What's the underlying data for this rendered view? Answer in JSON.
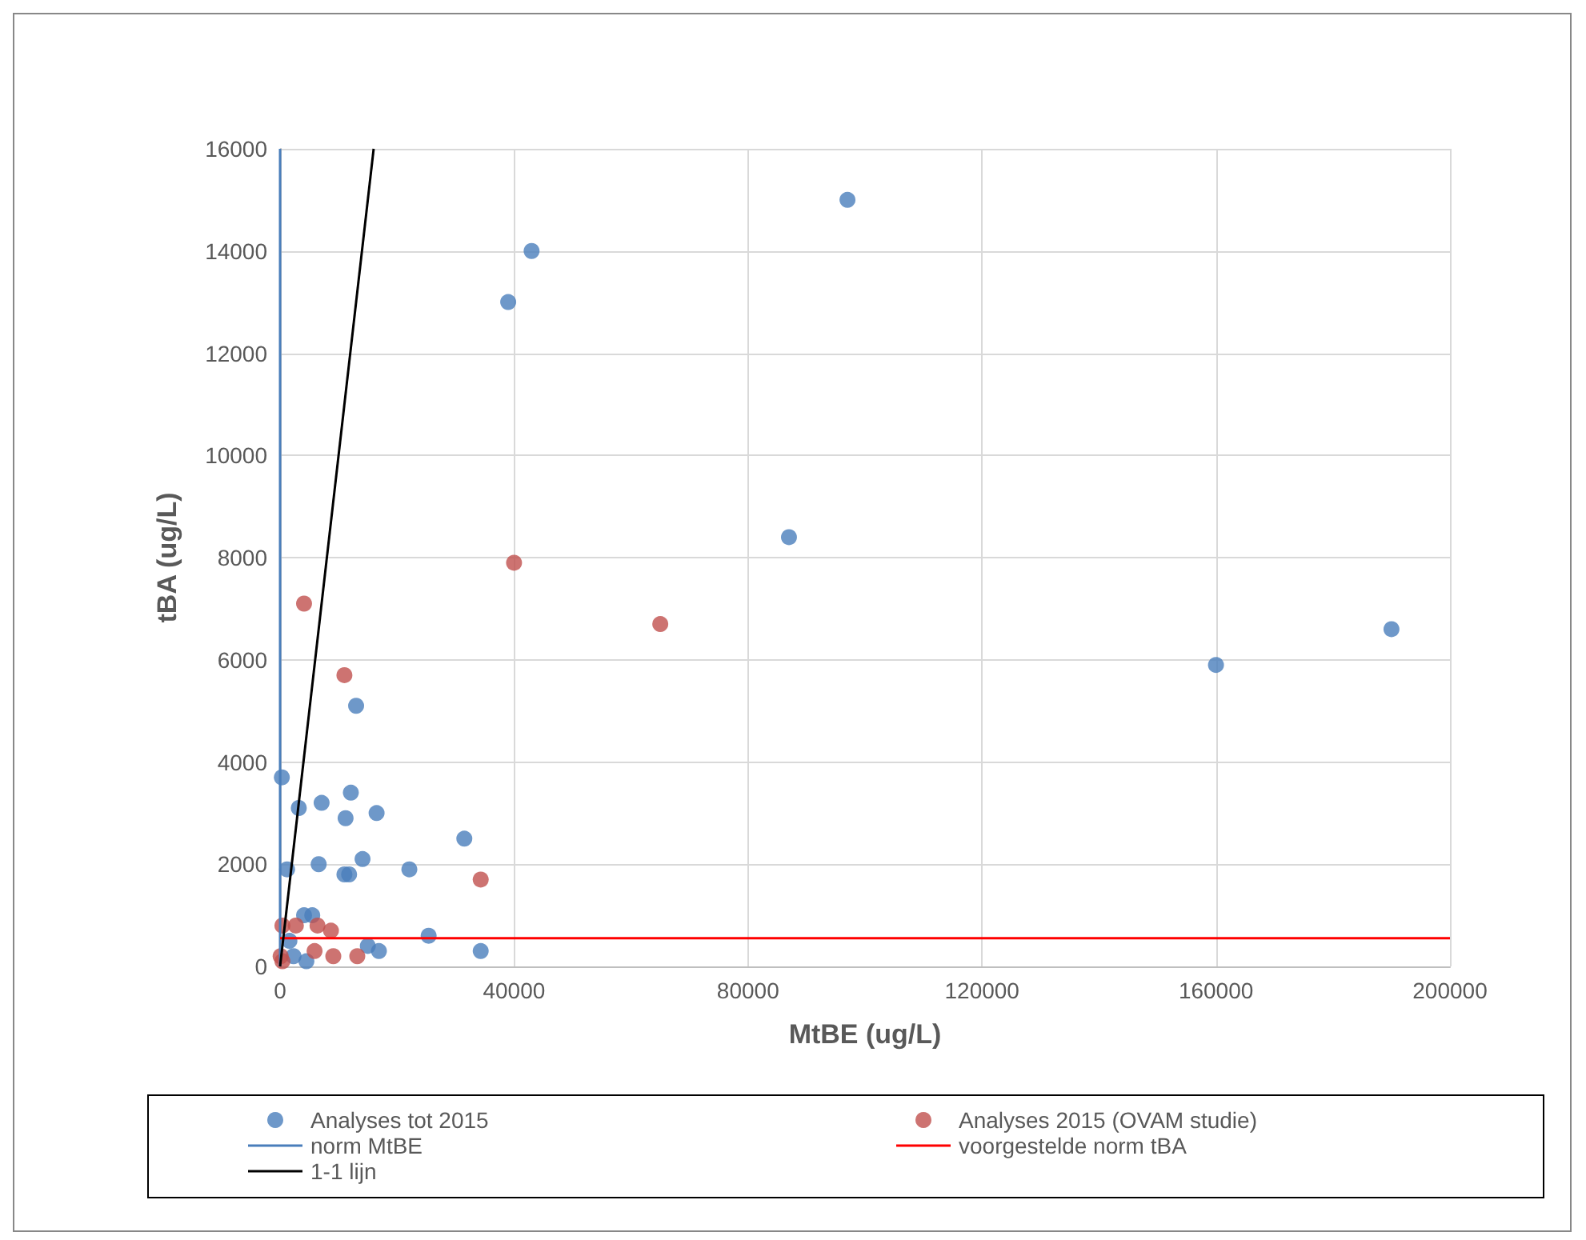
{
  "chart_data": {
    "type": "scatter",
    "xlabel": "MtBE (ug/L)",
    "ylabel": "tBA (ug/L)",
    "xlim": [
      0,
      200000
    ],
    "xticks": [
      0,
      40000,
      80000,
      120000,
      160000,
      200000
    ],
    "ylim": [
      0,
      16000
    ],
    "yticks": [
      0,
      2000,
      4000,
      6000,
      8000,
      10000,
      12000,
      14000,
      16000
    ],
    "grid": true,
    "legend": "bottom",
    "marker": "circle",
    "series": [
      {
        "name": "Analyses tot 2015",
        "color": "#4a7ebb",
        "x": [
          97000,
          43000,
          39000,
          87000,
          160000,
          190000,
          13000,
          300,
          3200,
          7100,
          12100,
          11200,
          16500,
          31500,
          1200,
          6600,
          11000,
          11800,
          14100,
          22100,
          25400,
          34300,
          16900,
          15000,
          4100,
          5500,
          4500,
          2300,
          1600
        ],
        "values": [
          15000,
          14000,
          13000,
          8400,
          5900,
          6600,
          5100,
          3700,
          3100,
          3200,
          3400,
          2900,
          3000,
          2500,
          1900,
          2000,
          1800,
          1800,
          2100,
          1900,
          600,
          300,
          300,
          400,
          1000,
          1000,
          100,
          200,
          500
        ]
      },
      {
        "name": "Analyses 2015 (OVAM studie)",
        "color": "#c0504d",
        "x": [
          4100,
          40000,
          65000,
          11000,
          34300,
          400,
          2700,
          6400,
          8700,
          13200,
          9100,
          5900,
          400,
          100
        ],
        "values": [
          7100,
          7900,
          6700,
          5700,
          1700,
          800,
          800,
          800,
          700,
          200,
          200,
          300,
          100,
          200
        ]
      },
      {
        "name": "norm MtBE",
        "type": "line",
        "marker": "none",
        "color": "#4a7ebb",
        "x": [
          0,
          0
        ],
        "values": [
          0,
          16000
        ]
      },
      {
        "name": "voorgestelde norm tBA",
        "type": "line",
        "marker": "none",
        "color": "#ff0000",
        "x": [
          0,
          200000
        ],
        "values": [
          550,
          550
        ]
      },
      {
        "name": "1-1 lijn",
        "type": "line",
        "marker": "none",
        "color": "#000000",
        "x": [
          0,
          16000
        ],
        "values": [
          0,
          16000
        ]
      }
    ]
  }
}
